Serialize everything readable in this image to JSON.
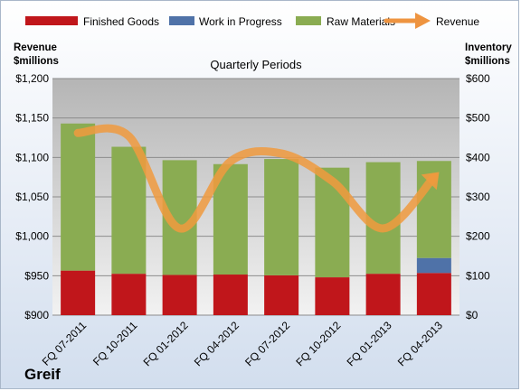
{
  "chart_data": {
    "type": "bar",
    "title": "Quarterly Periods",
    "company": "Greif",
    "left_axis": {
      "label_line1": "Revenue",
      "label_line2": "$millions",
      "min": 900,
      "max": 1200,
      "step": 50,
      "ticks": [
        "$900",
        "$950",
        "$1,000",
        "$1,050",
        "$1,100",
        "$1,150",
        "$1,200"
      ]
    },
    "right_axis": {
      "label_line1": "Inventory",
      "label_line2": "$millions",
      "min": 0,
      "max": 600,
      "step": 100,
      "ticks": [
        "$0",
        "$100",
        "$200",
        "$300",
        "$400",
        "$500",
        "$600"
      ]
    },
    "categories": [
      "FQ 07-2011",
      "FQ 10-2011",
      "FQ 01-2012",
      "FQ 04-2012",
      "FQ 07-2012",
      "FQ 10-2012",
      "FQ 01-2013",
      "FQ 04-2013"
    ],
    "series": [
      {
        "name": "Finished Goods",
        "axis": "right",
        "kind": "stacked-bar",
        "color": "#c0161b",
        "values": [
          113,
          105,
          102,
          103,
          101,
          96,
          105,
          107
        ]
      },
      {
        "name": "Work in Progress",
        "axis": "right",
        "kind": "stacked-bar",
        "color": "#4f72a8",
        "values": [
          0,
          0,
          0,
          0,
          0,
          0,
          0,
          38
        ]
      },
      {
        "name": "Raw Materials",
        "axis": "right",
        "kind": "stacked-bar",
        "color": "#8aac52",
        "values": [
          373,
          322,
          291,
          280,
          295,
          278,
          283,
          246
        ]
      },
      {
        "name": "Revenue",
        "axis": "left",
        "kind": "line",
        "color": "#f09a3e",
        "values": [
          1131,
          1127,
          1010,
          1095,
          1105,
          1070,
          1010,
          1075
        ]
      }
    ],
    "grid": true,
    "legend_position": "top"
  }
}
